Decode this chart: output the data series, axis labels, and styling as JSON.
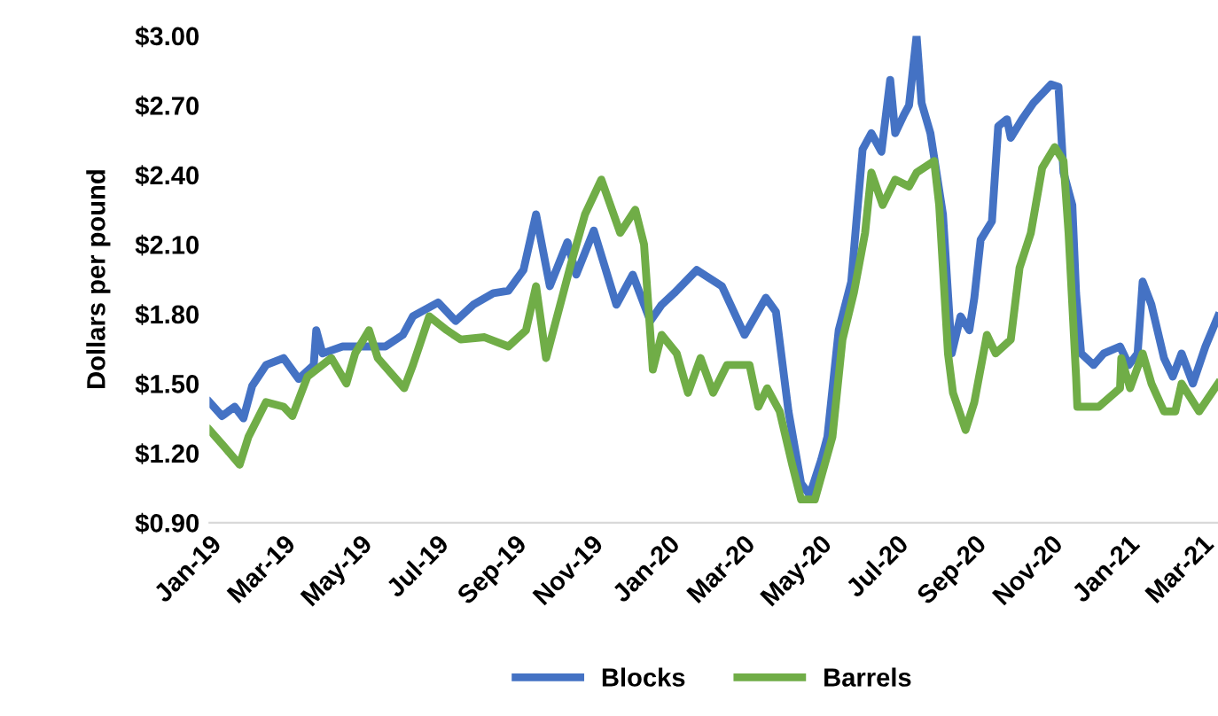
{
  "chart_data": {
    "type": "line",
    "ylabel": "Dollars per pound",
    "ylim": [
      0.9,
      3.0
    ],
    "yticks": [
      {
        "value": 0.9,
        "label": "$0.90"
      },
      {
        "value": 1.2,
        "label": "$1.20"
      },
      {
        "value": 1.5,
        "label": "$1.50"
      },
      {
        "value": 1.8,
        "label": "$1.80"
      },
      {
        "value": 2.1,
        "label": "$2.10"
      },
      {
        "value": 2.4,
        "label": "$2.40"
      },
      {
        "value": 2.7,
        "label": "$2.70"
      },
      {
        "value": 3.0,
        "label": "$3.00"
      }
    ],
    "xlim": [
      "2019-01-01",
      "2021-03-14"
    ],
    "xticks": [
      {
        "value": "2019-01-01",
        "label": "Jan-19"
      },
      {
        "value": "2019-03-01",
        "label": "Mar-19"
      },
      {
        "value": "2019-05-01",
        "label": "May-19"
      },
      {
        "value": "2019-07-01",
        "label": "Jul-19"
      },
      {
        "value": "2019-09-01",
        "label": "Sep-19"
      },
      {
        "value": "2019-11-01",
        "label": "Nov-19"
      },
      {
        "value": "2020-01-01",
        "label": "Jan-20"
      },
      {
        "value": "2020-03-01",
        "label": "Mar-20"
      },
      {
        "value": "2020-05-01",
        "label": "May-20"
      },
      {
        "value": "2020-07-01",
        "label": "Jul-20"
      },
      {
        "value": "2020-09-01",
        "label": "Sep-20"
      },
      {
        "value": "2020-11-01",
        "label": "Nov-20"
      },
      {
        "value": "2021-01-01",
        "label": "Jan-21"
      },
      {
        "value": "2021-03-01",
        "label": "Mar-21"
      }
    ],
    "grid": false,
    "legend": "bottom",
    "marker": "none",
    "line_style": "solid",
    "series": [
      {
        "name": "Blocks",
        "color": "#4472c4",
        "x": [
          "2019-01-01",
          "2019-01-11",
          "2019-01-21",
          "2019-01-28",
          "2019-02-04",
          "2019-02-15",
          "2019-03-01",
          "2019-03-13",
          "2019-03-25",
          "2019-03-27",
          "2019-04-01",
          "2019-04-17",
          "2019-05-01",
          "2019-05-21",
          "2019-06-04",
          "2019-06-12",
          "2019-07-02",
          "2019-07-16",
          "2019-07-30",
          "2019-08-15",
          "2019-08-27",
          "2019-09-08",
          "2019-09-18",
          "2019-09-29",
          "2019-10-13",
          "2019-10-20",
          "2019-11-03",
          "2019-11-21",
          "2019-12-04",
          "2019-12-18",
          "2019-12-27",
          "2020-01-06",
          "2020-01-24",
          "2020-02-13",
          "2020-03-02",
          "2020-03-19",
          "2020-03-27",
          "2020-04-06",
          "2020-04-16",
          "2020-04-23",
          "2020-05-02",
          "2020-05-07",
          "2020-05-16",
          "2020-05-26",
          "2020-06-04",
          "2020-06-11",
          "2020-06-19",
          "2020-06-26",
          "2020-06-30",
          "2020-07-07",
          "2020-07-11",
          "2020-07-17",
          "2020-07-21",
          "2020-07-28",
          "2020-08-07",
          "2020-08-14",
          "2020-08-21",
          "2020-08-28",
          "2020-09-01",
          "2020-09-06",
          "2020-09-15",
          "2020-09-20",
          "2020-09-27",
          "2020-09-30",
          "2020-10-09",
          "2020-10-18",
          "2020-11-01",
          "2020-11-07",
          "2020-11-11",
          "2020-11-18",
          "2020-11-21",
          "2020-11-25",
          "2020-12-05",
          "2020-12-13",
          "2020-12-26",
          "2021-01-02",
          "2021-01-09",
          "2021-01-13",
          "2021-01-20",
          "2021-01-30",
          "2021-02-06",
          "2021-02-13",
          "2021-02-22",
          "2021-03-04",
          "2021-03-14"
        ],
        "values": [
          1.42,
          1.36,
          1.4,
          1.35,
          1.49,
          1.58,
          1.61,
          1.52,
          1.58,
          1.73,
          1.63,
          1.66,
          1.66,
          1.66,
          1.71,
          1.79,
          1.85,
          1.77,
          1.84,
          1.89,
          1.9,
          1.99,
          2.23,
          1.92,
          2.11,
          1.97,
          2.16,
          1.84,
          1.97,
          1.77,
          1.84,
          1.89,
          1.99,
          1.92,
          1.71,
          1.87,
          1.81,
          1.38,
          1.07,
          1.02,
          1.17,
          1.27,
          1.73,
          1.94,
          2.51,
          2.58,
          2.5,
          2.81,
          2.58,
          2.66,
          2.7,
          3.0,
          2.71,
          2.58,
          2.23,
          1.63,
          1.79,
          1.73,
          1.87,
          2.12,
          2.2,
          2.61,
          2.64,
          2.56,
          2.64,
          2.71,
          2.79,
          2.78,
          2.41,
          2.27,
          1.89,
          1.63,
          1.58,
          1.63,
          1.66,
          1.58,
          1.63,
          1.94,
          1.84,
          1.61,
          1.53,
          1.63,
          1.5,
          1.66,
          1.79
        ]
      },
      {
        "name": "Barrels",
        "color": "#70ad47",
        "x": [
          "2019-01-01",
          "2019-01-14",
          "2019-01-25",
          "2019-02-01",
          "2019-02-15",
          "2019-03-01",
          "2019-03-08",
          "2019-03-20",
          "2019-04-08",
          "2019-04-20",
          "2019-04-27",
          "2019-05-08",
          "2019-05-15",
          "2019-06-05",
          "2019-06-12",
          "2019-06-25",
          "2019-07-09",
          "2019-07-20",
          "2019-08-08",
          "2019-08-27",
          "2019-09-10",
          "2019-09-18",
          "2019-09-26",
          "2019-10-16",
          "2019-10-27",
          "2019-11-09",
          "2019-11-24",
          "2019-12-06",
          "2019-12-13",
          "2019-12-20",
          "2019-12-27",
          "2020-01-08",
          "2020-01-17",
          "2020-01-27",
          "2020-02-06",
          "2020-02-17",
          "2020-03-06",
          "2020-03-13",
          "2020-03-20",
          "2020-03-30",
          "2020-04-09",
          "2020-04-16",
          "2020-04-27",
          "2020-05-11",
          "2020-05-19",
          "2020-05-28",
          "2020-06-06",
          "2020-06-11",
          "2020-06-20",
          "2020-06-30",
          "2020-07-11",
          "2020-07-17",
          "2020-07-31",
          "2020-08-04",
          "2020-08-11",
          "2020-08-15",
          "2020-08-25",
          "2020-09-01",
          "2020-09-11",
          "2020-09-18",
          "2020-09-30",
          "2020-10-07",
          "2020-10-16",
          "2020-10-25",
          "2020-11-04",
          "2020-11-11",
          "2020-11-15",
          "2020-11-21",
          "2020-11-22",
          "2020-12-09",
          "2020-12-26",
          "2020-12-27",
          "2021-01-03",
          "2021-01-13",
          "2021-01-20",
          "2021-01-30",
          "2021-02-08",
          "2021-02-13",
          "2021-02-27",
          "2021-03-14"
        ],
        "values": [
          1.3,
          1.22,
          1.15,
          1.27,
          1.42,
          1.4,
          1.36,
          1.53,
          1.61,
          1.5,
          1.63,
          1.73,
          1.61,
          1.48,
          1.58,
          1.79,
          1.73,
          1.69,
          1.7,
          1.66,
          1.73,
          1.92,
          1.61,
          2.02,
          2.23,
          2.38,
          2.15,
          2.25,
          2.1,
          1.56,
          1.71,
          1.63,
          1.46,
          1.61,
          1.46,
          1.58,
          1.58,
          1.4,
          1.48,
          1.38,
          1.15,
          1.0,
          1.0,
          1.27,
          1.69,
          1.89,
          2.15,
          2.41,
          2.27,
          2.38,
          2.35,
          2.41,
          2.46,
          2.27,
          1.63,
          1.46,
          1.3,
          1.42,
          1.71,
          1.63,
          1.69,
          2.0,
          2.15,
          2.43,
          2.52,
          2.46,
          2.15,
          1.53,
          1.4,
          1.4,
          1.48,
          1.61,
          1.48,
          1.63,
          1.5,
          1.38,
          1.38,
          1.5,
          1.38,
          1.5
        ]
      }
    ]
  }
}
